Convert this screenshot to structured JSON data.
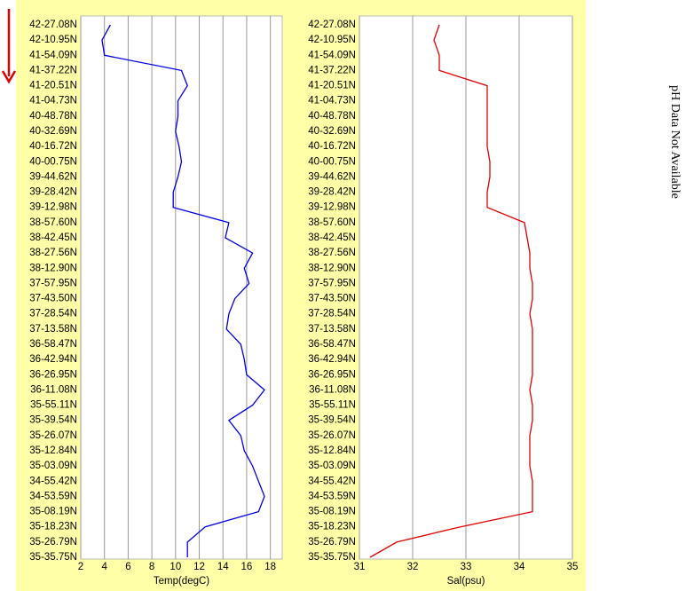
{
  "annotation": "pH Data Not Available",
  "chart_data": [
    {
      "type": "line",
      "orientation": "horizontal",
      "categories": [
        "42-27.08N",
        "42-10.95N",
        "41-54.09N",
        "41-37.22N",
        "41-20.51N",
        "41-04.73N",
        "40-48.78N",
        "40-32.69N",
        "40-16.72N",
        "40-00.75N",
        "39-44.62N",
        "39-28.42N",
        "39-12.98N",
        "38-57.60N",
        "38-42.45N",
        "38-27.56N",
        "38-12.90N",
        "37-57.95N",
        "37-43.50N",
        "37-28.54N",
        "37-13.58N",
        "36-58.47N",
        "36-42.94N",
        "36-26.95N",
        "36-11.08N",
        "35-55.11N",
        "35-39.54N",
        "35-26.07N",
        "35-12.84N",
        "35-03.09N",
        "34-55.42N",
        "34-53.59N",
        "35-08.19N",
        "35-18.23N",
        "35-26.79N",
        "35-35.75N"
      ],
      "values": [
        4.5,
        3.8,
        4.0,
        10.5,
        11.0,
        10.2,
        10.2,
        10.0,
        10.3,
        10.5,
        10.2,
        9.8,
        9.8,
        14.5,
        14.2,
        16.5,
        15.8,
        16.2,
        15.0,
        14.5,
        14.3,
        15.5,
        15.8,
        16.0,
        17.5,
        16.5,
        14.5,
        15.5,
        15.8,
        16.5,
        17.0,
        17.5,
        17.0,
        12.5,
        11.0,
        11.0
      ],
      "color": "#0000e0",
      "x_label": "Temp(degC)",
      "xlim": [
        2,
        19
      ],
      "xticks": [
        2,
        4,
        6,
        8,
        10,
        12,
        14,
        16,
        18
      ],
      "grid": true
    },
    {
      "type": "line",
      "orientation": "horizontal",
      "categories": [
        "42-27.08N",
        "42-10.95N",
        "41-54.09N",
        "41-37.22N",
        "41-20.51N",
        "41-04.73N",
        "40-48.78N",
        "40-32.69N",
        "40-16.72N",
        "40-00.75N",
        "39-44.62N",
        "39-28.42N",
        "39-12.98N",
        "38-57.60N",
        "38-42.45N",
        "38-27.56N",
        "38-12.90N",
        "37-57.95N",
        "37-43.50N",
        "37-28.54N",
        "37-13.58N",
        "36-58.47N",
        "36-42.94N",
        "36-26.95N",
        "36-11.08N",
        "35-55.11N",
        "35-39.54N",
        "35-26.07N",
        "35-12.84N",
        "35-03.09N",
        "34-55.42N",
        "34-53.59N",
        "35-08.19N",
        "35-18.23N",
        "35-26.79N",
        "35-35.75N"
      ],
      "values": [
        32.5,
        32.4,
        32.5,
        32.5,
        33.4,
        33.4,
        33.4,
        33.4,
        33.4,
        33.45,
        33.45,
        33.4,
        33.4,
        34.1,
        34.15,
        34.2,
        34.2,
        34.25,
        34.25,
        34.2,
        34.25,
        34.25,
        34.25,
        34.25,
        34.2,
        34.25,
        34.25,
        34.2,
        34.2,
        34.2,
        34.25,
        34.25,
        34.25,
        32.9,
        31.7,
        31.2
      ],
      "color": "#e00000",
      "x_label": "Sal(psu)",
      "xlim": [
        31,
        35
      ],
      "xticks": [
        31,
        32,
        33,
        34,
        35
      ],
      "grid": true
    }
  ]
}
